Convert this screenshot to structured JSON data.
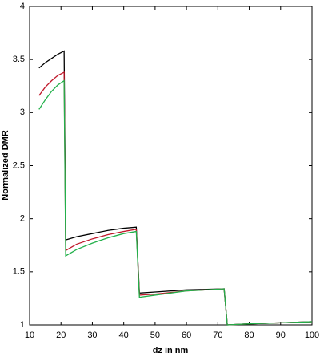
{
  "chart_data": {
    "type": "line",
    "xlabel": "dz in nm",
    "ylabel": "Normalized DMR",
    "x": [
      13,
      15,
      17,
      19,
      21,
      21.5,
      25,
      30,
      35,
      40,
      44,
      45,
      50,
      60,
      72,
      73,
      80,
      90,
      100
    ],
    "series": [
      {
        "color": "#000000",
        "values": [
          3.42,
          3.47,
          3.51,
          3.55,
          3.58,
          1.8,
          1.83,
          1.86,
          1.89,
          1.91,
          1.92,
          1.3,
          1.31,
          1.33,
          1.34,
          1.0,
          1.01,
          1.02,
          1.03
        ]
      },
      {
        "color": "#c0182a",
        "values": [
          3.16,
          3.24,
          3.3,
          3.35,
          3.38,
          1.7,
          1.76,
          1.81,
          1.85,
          1.88,
          1.9,
          1.28,
          1.29,
          1.32,
          1.34,
          1.0,
          1.01,
          1.02,
          1.03
        ]
      },
      {
        "color": "#22b04a",
        "values": [
          3.03,
          3.12,
          3.2,
          3.26,
          3.3,
          1.65,
          1.71,
          1.77,
          1.82,
          1.86,
          1.88,
          1.26,
          1.28,
          1.32,
          1.34,
          1.0,
          1.01,
          1.02,
          1.03
        ]
      }
    ],
    "xlim": [
      10,
      100
    ],
    "xticks": [
      10,
      20,
      30,
      40,
      50,
      60,
      70,
      80,
      90,
      100
    ],
    "ylim": [
      1,
      4
    ],
    "yticks": [
      1,
      1.5,
      2,
      2.5,
      3,
      3.5,
      4
    ]
  }
}
